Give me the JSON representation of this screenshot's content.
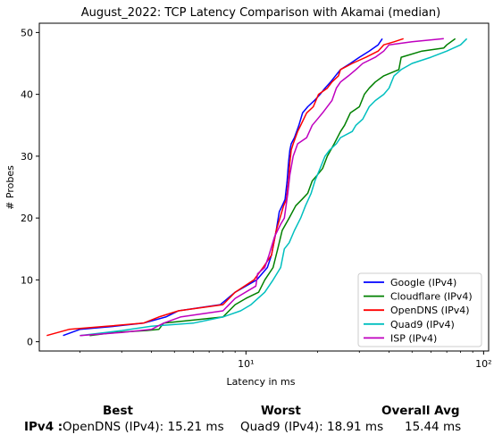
{
  "chart_data": {
    "type": "line",
    "title": "August_2022: TCP Latency Comparison with Akamai (median)",
    "xlabel": "Latency in ms",
    "ylabel": "# Probes",
    "xscale": "log",
    "xlim": [
      1.35,
      105
    ],
    "ylim": [
      -1.5,
      51.5
    ],
    "x_ticks": [
      10,
      100
    ],
    "x_tick_labels": [
      "10¹",
      "10²"
    ],
    "y_ticks": [
      0,
      10,
      20,
      30,
      40,
      50
    ],
    "y_tick_labels": [
      "0",
      "10",
      "20",
      "30",
      "40",
      "50"
    ],
    "grid": false,
    "legend_position": "lower-right",
    "series": [
      {
        "name": "Google (IPv4)",
        "color": "#0000ff",
        "points": [
          [
            1.7,
            1
          ],
          [
            2.0,
            2
          ],
          [
            2.8,
            2.5
          ],
          [
            3.7,
            3
          ],
          [
            4.6,
            4
          ],
          [
            5.2,
            5
          ],
          [
            7.8,
            6
          ],
          [
            9.0,
            8
          ],
          [
            11.1,
            10
          ],
          [
            12.3,
            12
          ],
          [
            12.8,
            14
          ],
          [
            13.4,
            18
          ],
          [
            13.8,
            21
          ],
          [
            14.2,
            22
          ],
          [
            14.6,
            23
          ],
          [
            14.9,
            26
          ],
          [
            15.1,
            29
          ],
          [
            15.3,
            31
          ],
          [
            15.5,
            32
          ],
          [
            16.0,
            33
          ],
          [
            16.7,
            35
          ],
          [
            17.3,
            37
          ],
          [
            18.2,
            38
          ],
          [
            19.4,
            39
          ],
          [
            20.5,
            40
          ],
          [
            21.5,
            41
          ],
          [
            22.7,
            42
          ],
          [
            23.8,
            43
          ],
          [
            25.0,
            44
          ],
          [
            27.5,
            45
          ],
          [
            30.0,
            46
          ],
          [
            33.0,
            47
          ],
          [
            36.0,
            48
          ],
          [
            37.5,
            49
          ]
        ]
      },
      {
        "name": "Cloudflare (IPv4)",
        "color": "#008000",
        "points": [
          [
            2.2,
            1
          ],
          [
            2.8,
            1.5
          ],
          [
            3.8,
            1.8
          ],
          [
            4.3,
            2
          ],
          [
            4.5,
            3
          ],
          [
            6.0,
            3.5
          ],
          [
            8.0,
            4
          ],
          [
            9.0,
            6
          ],
          [
            10.0,
            7
          ],
          [
            11.3,
            8
          ],
          [
            12.0,
            10
          ],
          [
            13.0,
            12
          ],
          [
            13.6,
            15
          ],
          [
            14.2,
            18
          ],
          [
            15.2,
            20
          ],
          [
            16.2,
            22
          ],
          [
            17.2,
            23
          ],
          [
            18.2,
            24
          ],
          [
            19.0,
            26
          ],
          [
            20.0,
            27
          ],
          [
            21.0,
            28
          ],
          [
            22.0,
            30
          ],
          [
            23.5,
            32
          ],
          [
            25.0,
            34
          ],
          [
            26.0,
            35
          ],
          [
            27.5,
            37
          ],
          [
            30.0,
            38
          ],
          [
            31.5,
            40
          ],
          [
            33.0,
            41
          ],
          [
            35.0,
            42
          ],
          [
            38.0,
            43
          ],
          [
            44.0,
            44
          ],
          [
            45.0,
            46
          ],
          [
            55.0,
            47
          ],
          [
            68.0,
            47.5
          ],
          [
            70.0,
            48
          ],
          [
            76.0,
            49
          ]
        ]
      },
      {
        "name": "OpenDNS (IPv4)",
        "color": "#ff0000",
        "points": [
          [
            1.45,
            1
          ],
          [
            1.8,
            2
          ],
          [
            2.6,
            2.5
          ],
          [
            3.7,
            3
          ],
          [
            4.3,
            4
          ],
          [
            5.2,
            5
          ],
          [
            8.0,
            6
          ],
          [
            9.0,
            8
          ],
          [
            10.8,
            10
          ],
          [
            11.8,
            12
          ],
          [
            12.8,
            14
          ],
          [
            13.4,
            18
          ],
          [
            13.9,
            20
          ],
          [
            14.4,
            22
          ],
          [
            14.8,
            23
          ],
          [
            15.1,
            26
          ],
          [
            15.3,
            29
          ],
          [
            15.5,
            31
          ],
          [
            15.8,
            32
          ],
          [
            16.5,
            34
          ],
          [
            17.0,
            35
          ],
          [
            18.0,
            37
          ],
          [
            19.2,
            38
          ],
          [
            20.2,
            40
          ],
          [
            22.0,
            41
          ],
          [
            23.0,
            42
          ],
          [
            24.5,
            43
          ],
          [
            25.0,
            44
          ],
          [
            28.0,
            45
          ],
          [
            32.0,
            46
          ],
          [
            36.0,
            47
          ],
          [
            38.0,
            48
          ],
          [
            42.0,
            48.5
          ],
          [
            46.0,
            49
          ]
        ]
      },
      {
        "name": "Quad9 (IPv4)",
        "color": "#00bfbf",
        "points": [
          [
            2.0,
            1
          ],
          [
            3.0,
            1.8
          ],
          [
            4.0,
            2.5
          ],
          [
            6.0,
            3
          ],
          [
            8.0,
            4
          ],
          [
            9.5,
            5
          ],
          [
            10.5,
            6
          ],
          [
            12.0,
            8
          ],
          [
            13.0,
            10
          ],
          [
            14.0,
            12
          ],
          [
            14.5,
            15
          ],
          [
            15.2,
            16
          ],
          [
            16.0,
            18
          ],
          [
            17.0,
            20
          ],
          [
            17.8,
            22
          ],
          [
            18.8,
            24
          ],
          [
            19.5,
            26
          ],
          [
            20.5,
            28
          ],
          [
            21.5,
            30
          ],
          [
            22.5,
            31
          ],
          [
            24.0,
            32
          ],
          [
            25.0,
            33
          ],
          [
            28.0,
            34
          ],
          [
            29.0,
            35
          ],
          [
            31.0,
            36
          ],
          [
            33.0,
            38
          ],
          [
            35.0,
            39
          ],
          [
            38.0,
            40
          ],
          [
            40.0,
            41
          ],
          [
            42.0,
            43
          ],
          [
            45.0,
            44
          ],
          [
            50.0,
            45
          ],
          [
            60.0,
            46
          ],
          [
            70.0,
            47
          ],
          [
            80.0,
            48
          ],
          [
            85.0,
            49
          ]
        ]
      },
      {
        "name": "ISP (IPv4)",
        "color": "#bf00bf",
        "points": [
          [
            2.0,
            1
          ],
          [
            3.0,
            1.5
          ],
          [
            4.0,
            2
          ],
          [
            4.5,
            3
          ],
          [
            5.3,
            4
          ],
          [
            8.0,
            5
          ],
          [
            9.0,
            7
          ],
          [
            11.0,
            9
          ],
          [
            11.2,
            11
          ],
          [
            12.0,
            12
          ],
          [
            12.5,
            14
          ],
          [
            13.2,
            17
          ],
          [
            14.0,
            19
          ],
          [
            14.5,
            20
          ],
          [
            15.0,
            24
          ],
          [
            15.3,
            27
          ],
          [
            15.8,
            30
          ],
          [
            16.5,
            32
          ],
          [
            18.0,
            33
          ],
          [
            19.0,
            35
          ],
          [
            20.0,
            36
          ],
          [
            21.0,
            37
          ],
          [
            23.0,
            39
          ],
          [
            24.0,
            41
          ],
          [
            25.0,
            42
          ],
          [
            27.0,
            43
          ],
          [
            29.0,
            44
          ],
          [
            31.0,
            45
          ],
          [
            35.0,
            46
          ],
          [
            38.0,
            47
          ],
          [
            40.0,
            48
          ],
          [
            50.0,
            48.5
          ],
          [
            68.0,
            49
          ]
        ]
      }
    ]
  },
  "summary": {
    "best_header": "Best",
    "worst_header": "Worst",
    "avg_header": "Overall Avg",
    "row_label": "IPv4 :",
    "best_value": "OpenDNS (IPv4): 15.21 ms",
    "worst_value": "Quad9 (IPv4): 18.91 ms",
    "avg_value": "15.44 ms"
  }
}
